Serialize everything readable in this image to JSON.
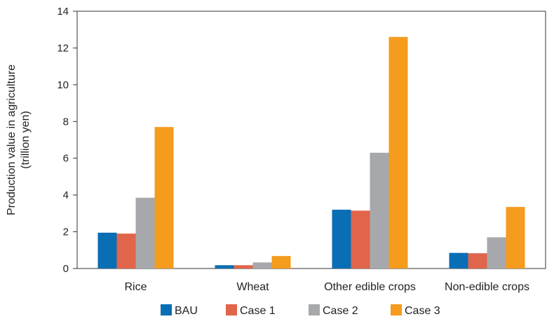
{
  "chart_data": {
    "type": "bar",
    "categories": [
      "Rice",
      "Wheat",
      "Other  edible crops",
      "Non-edible crops"
    ],
    "series": [
      {
        "name": "BAU",
        "color": "#0a6eb4",
        "values": [
          1.95,
          0.18,
          3.2,
          0.85
        ]
      },
      {
        "name": "Case 1",
        "color": "#e0654a",
        "values": [
          1.9,
          0.18,
          3.15,
          0.83
        ]
      },
      {
        "name": "Case 2",
        "color": "#a7a8ab",
        "values": [
          3.85,
          0.33,
          6.3,
          1.7
        ]
      },
      {
        "name": "Case 3",
        "color": "#f59b1d",
        "values": [
          7.7,
          0.68,
          12.6,
          3.35
        ]
      }
    ],
    "ylabel_lines": [
      "Production value in agriculture",
      "(trillion yen)"
    ],
    "ylim": [
      0,
      14
    ],
    "yticks": [
      0,
      2,
      4,
      6,
      8,
      10,
      12,
      14
    ],
    "grid": false,
    "legend_position": "bottom"
  }
}
